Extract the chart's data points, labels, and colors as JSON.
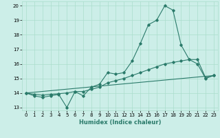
{
  "xlabel": "Humidex (Indice chaleur)",
  "ylabel": "",
  "background_color": "#cceee8",
  "grid_color": "#aaddcc",
  "line_color": "#2a7a6a",
  "xlim": [
    -0.5,
    23.5
  ],
  "ylim": [
    12.8,
    20.3
  ],
  "yticks": [
    13,
    14,
    15,
    16,
    17,
    18,
    19,
    20
  ],
  "xticks": [
    0,
    1,
    2,
    3,
    4,
    5,
    6,
    7,
    8,
    9,
    10,
    11,
    12,
    13,
    14,
    15,
    16,
    17,
    18,
    19,
    20,
    21,
    22,
    23
  ],
  "line1_x": [
    0,
    1,
    2,
    3,
    4,
    5,
    6,
    7,
    8,
    9,
    10,
    11,
    12,
    13,
    14,
    15,
    16,
    17,
    18,
    19,
    20,
    21,
    22,
    23
  ],
  "line1_y": [
    14.0,
    13.8,
    13.7,
    13.8,
    13.9,
    13.0,
    14.1,
    13.8,
    14.4,
    14.6,
    15.4,
    15.3,
    15.4,
    16.2,
    17.4,
    18.7,
    19.0,
    20.0,
    19.7,
    17.3,
    16.3,
    16.0,
    15.0,
    15.2
  ],
  "line2_x": [
    0,
    1,
    2,
    3,
    4,
    5,
    6,
    7,
    8,
    9,
    10,
    11,
    12,
    13,
    14,
    15,
    16,
    17,
    18,
    19,
    20,
    21,
    22,
    23
  ],
  "line2_y": [
    14.0,
    13.9,
    13.85,
    13.9,
    13.95,
    14.0,
    14.1,
    14.1,
    14.25,
    14.4,
    14.7,
    14.85,
    15.0,
    15.2,
    15.4,
    15.6,
    15.8,
    16.0,
    16.1,
    16.2,
    16.3,
    16.3,
    15.05,
    15.2
  ],
  "line3_x": [
    0,
    23
  ],
  "line3_y": [
    14.0,
    15.2
  ]
}
